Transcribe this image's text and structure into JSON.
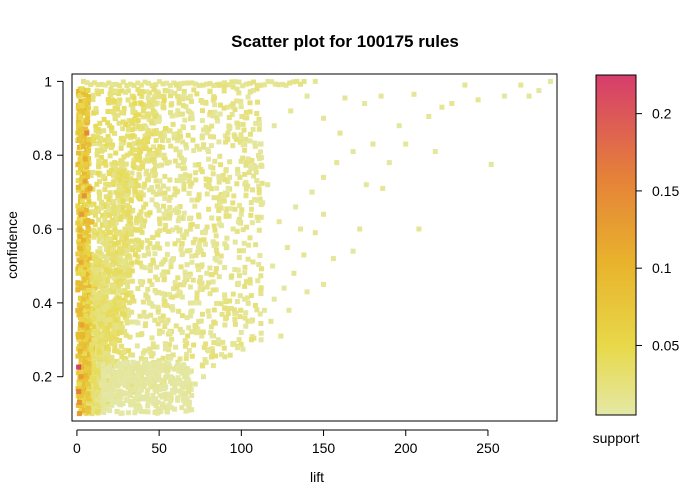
{
  "chart_data": {
    "type": "scatter",
    "title": "Scatter plot for 100175 rules",
    "xlabel": "lift",
    "ylabel": "confidence",
    "xlim": [
      -3,
      292
    ],
    "ylim": [
      0.08,
      1.02
    ],
    "x_ticks": [
      0,
      50,
      100,
      150,
      200,
      250
    ],
    "x_tick_labels": [
      "0",
      "50",
      "100",
      "150",
      "200",
      "250"
    ],
    "y_ticks": [
      0.2,
      0.4,
      0.6,
      0.8,
      1.0
    ],
    "y_tick_labels": [
      "0.2",
      "0.4",
      "0.6",
      "0.8",
      "1"
    ],
    "grid": false,
    "color_scale": {
      "label": "support",
      "range": [
        0.005,
        0.225
      ],
      "ticks": [
        0.05,
        0.1,
        0.15,
        0.2
      ],
      "tick_labels": [
        "0.05",
        "0.1",
        "0.15",
        "0.2"
      ],
      "colors": [
        "#e4e8a6",
        "#e8c237",
        "#e9a02f",
        "#e3703f",
        "#d63d6c"
      ]
    },
    "points": [
      {
        "x": 1,
        "y": 0.226,
        "support": 0.222
      },
      {
        "x": 1.5,
        "y": 0.1,
        "support": 0.13
      },
      {
        "x": 1,
        "y": 0.16,
        "support": 0.16
      },
      {
        "x": 1.5,
        "y": 0.13,
        "support": 0.14
      },
      {
        "x": 2.5,
        "y": 0.2,
        "support": 0.13
      },
      {
        "x": 3,
        "y": 0.34,
        "support": 0.12
      },
      {
        "x": 2.5,
        "y": 0.51,
        "support": 0.11
      },
      {
        "x": 3,
        "y": 0.64,
        "support": 0.13
      },
      {
        "x": 4.5,
        "y": 0.69,
        "support": 0.14
      },
      {
        "x": 5,
        "y": 0.73,
        "support": 0.12
      },
      {
        "x": 6,
        "y": 0.86,
        "support": 0.15
      },
      {
        "x": 5,
        "y": 0.79,
        "support": 0.11
      },
      {
        "x": 3,
        "y": 0.92,
        "support": 0.08
      },
      {
        "x": 2,
        "y": 0.45,
        "support": 0.09
      },
      {
        "x": 3.5,
        "y": 0.31,
        "support": 0.1
      },
      {
        "x": 8,
        "y": 0.71,
        "support": 0.12
      },
      {
        "x": 4,
        "y": 0.57,
        "support": 0.1
      },
      {
        "x": 2,
        "y": 0.27,
        "support": 0.1
      },
      {
        "x": 9,
        "y": 0.62,
        "support": 0.09
      },
      {
        "x": 7,
        "y": 0.95,
        "support": 0.07
      },
      {
        "x": 5,
        "y": 0.24,
        "support": 0.09
      },
      {
        "x": 4,
        "y": 0.41,
        "support": 0.08
      }
    ],
    "dense_region_note": "",
    "sparse_points": [
      [
        145,
        1.0
      ],
      [
        163,
        0.955
      ],
      [
        185,
        0.96
      ],
      [
        205,
        0.965
      ],
      [
        236,
        0.99
      ],
      [
        270,
        0.99
      ],
      [
        288,
        1.0
      ],
      [
        252,
        0.775
      ],
      [
        214,
        0.905
      ],
      [
        196,
        0.88
      ],
      [
        200,
        0.83
      ],
      [
        218,
        0.81
      ],
      [
        208,
        0.6
      ],
      [
        260,
        0.96
      ],
      [
        275,
        0.96
      ],
      [
        281,
        0.975
      ],
      [
        244,
        0.95
      ],
      [
        228,
        0.94
      ],
      [
        222,
        0.93
      ],
      [
        176,
        0.72
      ],
      [
        186,
        0.71
      ],
      [
        172,
        0.6
      ],
      [
        156,
        0.52
      ],
      [
        168,
        0.54
      ],
      [
        150,
        0.45
      ],
      [
        140,
        0.43
      ],
      [
        129,
        0.38
      ],
      [
        118,
        0.35
      ],
      [
        112,
        0.3
      ],
      [
        124,
        0.31
      ],
      [
        180,
        0.83
      ],
      [
        190,
        0.78
      ],
      [
        168,
        0.81
      ],
      [
        158,
        0.78
      ],
      [
        150,
        0.74
      ],
      [
        143,
        0.7
      ],
      [
        133,
        0.66
      ],
      [
        123,
        0.62
      ],
      [
        136,
        0.6
      ],
      [
        128,
        0.55
      ],
      [
        119,
        0.5
      ],
      [
        110,
        0.46
      ],
      [
        102,
        0.41
      ],
      [
        96,
        0.37
      ],
      [
        90,
        0.34
      ],
      [
        86,
        0.3
      ],
      [
        80,
        0.27
      ],
      [
        150,
        0.9
      ],
      [
        160,
        0.86
      ],
      [
        175,
        0.94
      ],
      [
        140,
        0.96
      ],
      [
        130,
        0.92
      ],
      [
        120,
        0.88
      ],
      [
        112,
        0.83
      ],
      [
        104,
        0.79
      ],
      [
        98,
        0.75
      ],
      [
        92,
        0.71
      ],
      [
        87,
        0.67
      ],
      [
        82,
        0.63
      ],
      [
        78,
        0.59
      ],
      [
        74,
        0.55
      ],
      [
        70,
        0.51
      ],
      [
        66,
        0.47
      ],
      [
        62,
        0.43
      ],
      [
        58,
        0.39
      ],
      [
        116,
        0.72
      ],
      [
        108,
        0.68
      ],
      [
        100,
        0.64
      ],
      [
        95,
        0.6
      ],
      [
        90,
        0.56
      ],
      [
        84,
        0.52
      ],
      [
        79,
        0.48
      ],
      [
        75,
        0.44
      ],
      [
        71,
        0.4
      ],
      [
        67,
        0.36
      ],
      [
        64,
        0.32
      ],
      [
        60,
        0.28
      ],
      [
        57,
        0.25
      ],
      [
        55,
        0.22
      ],
      [
        52,
        0.19
      ],
      [
        150,
        0.64
      ],
      [
        145,
        0.59
      ],
      [
        138,
        0.53
      ],
      [
        132,
        0.48
      ],
      [
        126,
        0.44
      ],
      [
        120,
        0.41
      ],
      [
        114,
        0.38
      ],
      [
        106,
        0.35
      ],
      [
        100,
        0.32
      ],
      [
        95,
        0.29
      ],
      [
        88,
        0.26
      ],
      [
        83,
        0.23
      ],
      [
        77,
        0.2
      ],
      [
        72,
        0.18
      ],
      [
        68,
        0.16
      ]
    ]
  }
}
